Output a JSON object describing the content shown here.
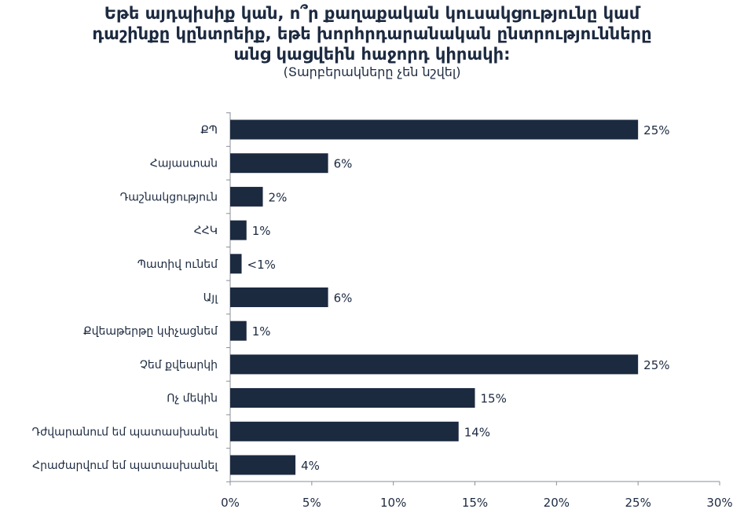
{
  "chart_data": {
    "type": "bar",
    "orientation": "horizontal",
    "title_lines": [
      "Եթե այդպիսիք կան, ո՞ր քաղաքական կուսակցությունը կամ",
      "դաշինքը կընտրեիք, եթե խորհրդարանական ընտրությունները",
      "անց կացվեին հաջորդ կիրակի:"
    ],
    "subtitle": "(Տարբերակները չեն նշվել)",
    "categories": [
      "ՔՊ",
      "Հայաստան",
      "Դաշնակցություն",
      "ՀՀԿ",
      "Պատիվ ունեմ",
      "Այլ",
      "Քվեաթերթը կփչացնեմ",
      "Չեմ քվեարկի",
      "Ոչ մեկին",
      "Դժվարանում եմ պատասխանել",
      "Հրաժարվում եմ պատասխանել"
    ],
    "values": [
      25,
      6,
      2,
      1,
      0.7,
      6,
      1,
      25,
      15,
      14,
      4
    ],
    "value_labels": [
      "25%",
      "6%",
      "2%",
      "1%",
      "<1%",
      "6%",
      "1%",
      "25%",
      "15%",
      "14%",
      "4%"
    ],
    "xlim": [
      0,
      30
    ],
    "xticks": [
      0,
      5,
      10,
      15,
      20,
      25,
      30
    ],
    "xtick_labels": [
      "0%",
      "5%",
      "10%",
      "15%",
      "20%",
      "25%",
      "30%"
    ],
    "bar_color": "#1c2a40",
    "grid": false,
    "legend": "none"
  }
}
